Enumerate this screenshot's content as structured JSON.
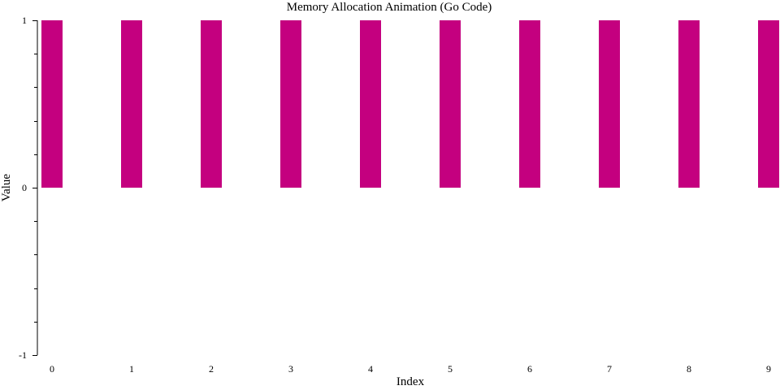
{
  "chart_data": {
    "type": "bar",
    "title": "Memory Allocation Animation (Go Code)",
    "xlabel": "Index",
    "ylabel": "Value",
    "categories": [
      "0",
      "1",
      "2",
      "3",
      "4",
      "5",
      "6",
      "7",
      "8",
      "9"
    ],
    "values": [
      1,
      1,
      1,
      1,
      1,
      1,
      1,
      1,
      1,
      1
    ],
    "ylim": [
      -1,
      1
    ],
    "y_tick_labels": [
      "-1",
      "0",
      "1"
    ],
    "y_minor_ticks_per_unit": 5,
    "bar_color": "#c4007f",
    "grid": false,
    "legend": "none"
  }
}
